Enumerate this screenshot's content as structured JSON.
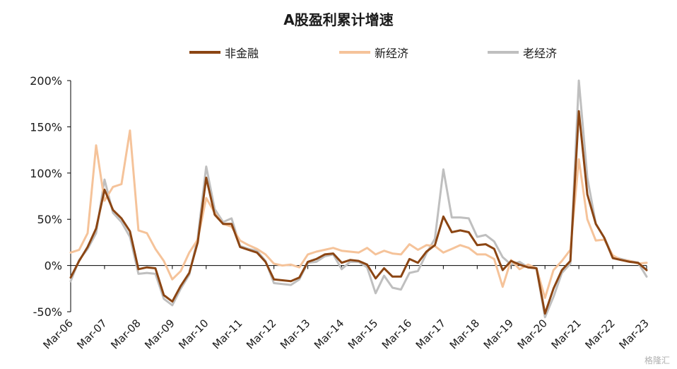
{
  "chart_data": {
    "type": "line",
    "title": "A股盈利累计增速",
    "xlabel": "",
    "ylabel": "",
    "ylim": [
      -0.5,
      2.0
    ],
    "y_ticks": [
      -0.5,
      0,
      0.5,
      1.0,
      1.5,
      2.0
    ],
    "y_tick_labels": [
      "-50%",
      "0%",
      "50%",
      "100%",
      "150%",
      "200%"
    ],
    "x_ticks": [
      "Mar-06",
      "Mar-07",
      "Mar-08",
      "Mar-09",
      "Mar-10",
      "Mar-11",
      "Mar-12",
      "Mar-13",
      "Mar-14",
      "Mar-15",
      "Mar-16",
      "Mar-17",
      "Mar-18",
      "Mar-19",
      "Mar-20",
      "Mar-21",
      "Mar-22",
      "Mar-23"
    ],
    "x_tick_labels": [
      "Mar-06",
      "Mar-07",
      "Mar-08",
      "Mar-09",
      "Mar-10",
      "Mar-11",
      "Mar-12",
      "Mar-13",
      "Mar-14",
      "Mar-15",
      "Mar-16",
      "Mar-17",
      "Mar-18",
      "Mar-19",
      "Mar-20",
      "Mar-21",
      "Mar-22",
      "Mar-23"
    ],
    "frequency": "quarterly",
    "start": "Mar-06",
    "legend_position": "top",
    "grid": false,
    "series": [
      {
        "name": "非金融",
        "color": "#8B4513",
        "values": [
          -0.13,
          0.05,
          0.2,
          0.4,
          0.82,
          0.6,
          0.51,
          0.37,
          -0.04,
          -0.02,
          -0.03,
          -0.32,
          -0.39,
          -0.22,
          -0.08,
          0.25,
          0.95,
          0.55,
          0.45,
          0.45,
          0.2,
          0.17,
          0.14,
          0.04,
          -0.15,
          -0.16,
          -0.17,
          -0.13,
          0.04,
          0.07,
          0.12,
          0.13,
          0.03,
          0.06,
          0.05,
          0.01,
          -0.14,
          -0.03,
          -0.12,
          -0.12,
          0.07,
          0.03,
          0.15,
          0.22,
          0.53,
          0.36,
          0.38,
          0.36,
          0.22,
          0.23,
          0.18,
          -0.05,
          0.05,
          0.01,
          -0.02,
          -0.03,
          -0.52,
          -0.25,
          -0.05,
          0.05,
          1.67,
          0.77,
          0.45,
          0.3,
          0.08,
          0.06,
          0.04,
          0.03,
          -0.05
        ]
      },
      {
        "name": "新经济",
        "color": "#F5C39A",
        "values": [
          0.14,
          0.17,
          0.35,
          1.3,
          0.7,
          0.85,
          0.88,
          1.46,
          0.38,
          0.35,
          0.18,
          0.05,
          -0.15,
          -0.06,
          0.14,
          0.28,
          0.73,
          0.57,
          0.45,
          0.42,
          0.27,
          0.22,
          0.18,
          0.12,
          0.02,
          0.0,
          0.01,
          -0.02,
          0.12,
          0.15,
          0.17,
          0.19,
          0.16,
          0.15,
          0.14,
          0.19,
          0.12,
          0.16,
          0.13,
          0.12,
          0.23,
          0.17,
          0.22,
          0.21,
          0.14,
          0.18,
          0.22,
          0.19,
          0.12,
          0.12,
          0.07,
          -0.23,
          0.06,
          -0.04,
          0.01,
          -0.03,
          -0.35,
          -0.05,
          0.05,
          0.17,
          1.15,
          0.5,
          0.27,
          0.28,
          0.11,
          0.06,
          0.05,
          0.02,
          0.03
        ]
      },
      {
        "name": "老经济",
        "color": "#BFBFBF",
        "values": [
          -0.17,
          0.06,
          0.18,
          0.35,
          0.93,
          0.57,
          0.47,
          0.31,
          -0.09,
          -0.08,
          -0.09,
          -0.36,
          -0.43,
          -0.25,
          -0.1,
          0.3,
          1.07,
          0.61,
          0.47,
          0.51,
          0.21,
          0.18,
          0.16,
          0.05,
          -0.19,
          -0.2,
          -0.21,
          -0.15,
          0.03,
          0.04,
          0.1,
          0.12,
          -0.04,
          0.04,
          0.04,
          -0.02,
          -0.3,
          -0.11,
          -0.24,
          -0.26,
          -0.08,
          -0.06,
          0.13,
          0.29,
          1.04,
          0.52,
          0.52,
          0.51,
          0.31,
          0.33,
          0.26,
          0.09,
          0.01,
          0.04,
          -0.02,
          -0.03,
          -0.56,
          -0.34,
          -0.08,
          0.02,
          2.0,
          0.95,
          0.45,
          0.3,
          0.1,
          0.07,
          0.05,
          0.03,
          -0.12
        ]
      }
    ]
  },
  "watermark": "格隆汇"
}
